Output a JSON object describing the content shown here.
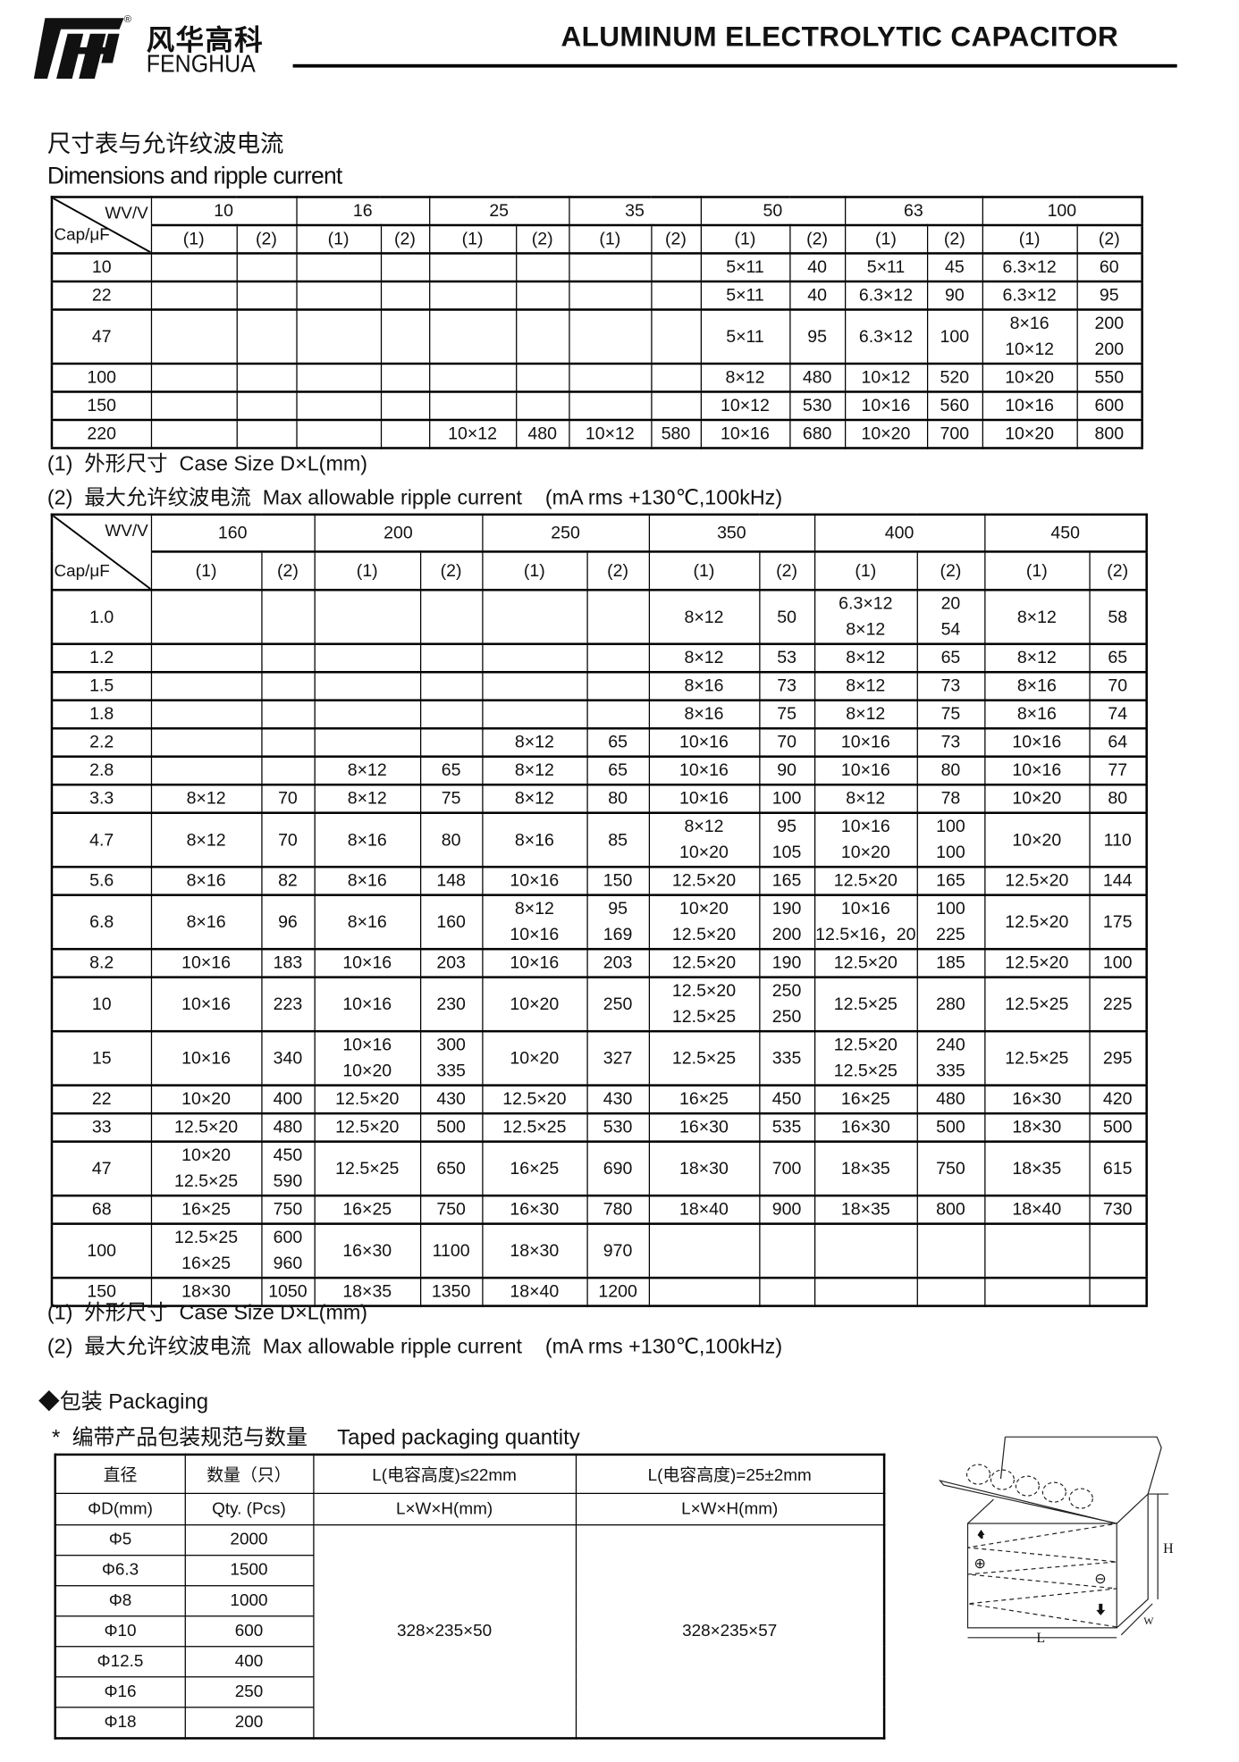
{
  "header": {
    "logo_cn": "风华高科",
    "logo_en": "FENGHUA",
    "logo_mark": "FH",
    "registered": "®",
    "title": "ALUMINUM ELECTROLYTIC CAPACITOR"
  },
  "section1": {
    "title_cn": "尺寸表与允许纹波电流",
    "title_en": "Dimensions and ripple current"
  },
  "table1": {
    "corner_top": "WV/V",
    "corner_bottom": "Cap/μF",
    "voltages": [
      "10",
      "16",
      "25",
      "35",
      "50",
      "63",
      "100"
    ],
    "subheaders": [
      "(1)",
      "(2)"
    ],
    "rows": [
      {
        "cap": "10",
        "cells": [
          "",
          "",
          "",
          "",
          "",
          "",
          "",
          "",
          "5×11",
          "40",
          "5×11",
          "45",
          "6.3×12",
          "60"
        ]
      },
      {
        "cap": "22",
        "cells": [
          "",
          "",
          "",
          "",
          "",
          "",
          "",
          "",
          "5×11",
          "40",
          "6.3×12",
          "90",
          "6.3×12",
          "95"
        ]
      },
      {
        "cap": "47",
        "cells": [
          "",
          "",
          "",
          "",
          "",
          "",
          "",
          "",
          "5×11",
          "95",
          "6.3×12",
          "100",
          "8×16\n10×12",
          "200\n200"
        ]
      },
      {
        "cap": "100",
        "cells": [
          "",
          "",
          "",
          "",
          "",
          "",
          "",
          "",
          "8×12",
          "480",
          "10×12",
          "520",
          "10×20",
          "550"
        ]
      },
      {
        "cap": "150",
        "cells": [
          "",
          "",
          "",
          "",
          "",
          "",
          "",
          "",
          "10×12",
          "530",
          "10×16",
          "560",
          "10×16",
          "600"
        ]
      },
      {
        "cap": "220",
        "cells": [
          "",
          "",
          "",
          "",
          "10×12",
          "480",
          "10×12",
          "580",
          "10×16",
          "680",
          "10×20",
          "700",
          "10×20",
          "800"
        ]
      }
    ]
  },
  "notes1": {
    "line1": "(1)  外形尺寸  Case Size D×L(mm)",
    "line2": "(2)  最大允许纹波电流  Max allowable ripple current    (mA rms +130℃,100kHz)"
  },
  "table2": {
    "corner_top": "WV/V",
    "corner_bottom": "Cap/μF",
    "voltages": [
      "160",
      "200",
      "250",
      "350",
      "400",
      "450"
    ],
    "subheaders": [
      "(1)",
      "(2)"
    ],
    "rows": [
      {
        "cap": "1.0",
        "cells": [
          "",
          "",
          "",
          "",
          "",
          "",
          "8×12",
          "50",
          "6.3×12\n8×12",
          "20\n54",
          "8×12",
          "58"
        ]
      },
      {
        "cap": "1.2",
        "cells": [
          "",
          "",
          "",
          "",
          "",
          "",
          "8×12",
          "53",
          "8×12",
          "65",
          "8×12",
          "65"
        ]
      },
      {
        "cap": "1.5",
        "cells": [
          "",
          "",
          "",
          "",
          "",
          "",
          "8×16",
          "73",
          "8×12",
          "73",
          "8×16",
          "70"
        ]
      },
      {
        "cap": "1.8",
        "cells": [
          "",
          "",
          "",
          "",
          "",
          "",
          "8×16",
          "75",
          "8×12",
          "75",
          "8×16",
          "74"
        ]
      },
      {
        "cap": "2.2",
        "cells": [
          "",
          "",
          "",
          "",
          "8×12",
          "65",
          "10×16",
          "70",
          "10×16",
          "73",
          "10×16",
          "64"
        ]
      },
      {
        "cap": "2.8",
        "cells": [
          "",
          "",
          "8×12",
          "65",
          "8×12",
          "65",
          "10×16",
          "90",
          "10×16",
          "80",
          "10×16",
          "77"
        ]
      },
      {
        "cap": "3.3",
        "cells": [
          "8×12",
          "70",
          "8×12",
          "75",
          "8×12",
          "80",
          "10×16",
          "100",
          "8×12",
          "78",
          "10×20",
          "80"
        ]
      },
      {
        "cap": "4.7",
        "cells": [
          "8×12",
          "70",
          "8×16",
          "80",
          "8×16",
          "85",
          "8×12\n10×20",
          "95\n105",
          "10×16\n10×20",
          "100\n100",
          "10×20",
          "110"
        ]
      },
      {
        "cap": "5.6",
        "cells": [
          "8×16",
          "82",
          "8×16",
          "148",
          "10×16",
          "150",
          "12.5×20",
          "165",
          "12.5×20",
          "165",
          "12.5×20",
          "144"
        ]
      },
      {
        "cap": "6.8",
        "cells": [
          "8×16",
          "96",
          "8×16",
          "160",
          "8×12\n10×16",
          "95\n169",
          "10×20\n12.5×20",
          "190\n200",
          "10×16\n12.5×16，20",
          "100\n225",
          "12.5×20",
          "175"
        ]
      },
      {
        "cap": "8.2",
        "cells": [
          "10×16",
          "183",
          "10×16",
          "203",
          "10×16",
          "203",
          "12.5×20",
          "190",
          "12.5×20",
          "185",
          "12.5×20",
          "100"
        ]
      },
      {
        "cap": "10",
        "cells": [
          "10×16",
          "223",
          "10×16",
          "230",
          "10×20",
          "250",
          "12.5×20\n12.5×25",
          "250\n250",
          "12.5×25",
          "280",
          "12.5×25",
          "225"
        ]
      },
      {
        "cap": "15",
        "cells": [
          "10×16",
          "340",
          "10×16\n10×20",
          "300\n335",
          "10×20",
          "327",
          "12.5×25",
          "335",
          "12.5×20\n12.5×25",
          "240\n335",
          "12.5×25",
          "295"
        ]
      },
      {
        "cap": "22",
        "cells": [
          "10×20",
          "400",
          "12.5×20",
          "430",
          "12.5×20",
          "430",
          "16×25",
          "450",
          "16×25",
          "480",
          "16×30",
          "420"
        ]
      },
      {
        "cap": "33",
        "cells": [
          "12.5×20",
          "480",
          "12.5×20",
          "500",
          "12.5×25",
          "530",
          "16×30",
          "535",
          "16×30",
          "500",
          "18×30",
          "500"
        ]
      },
      {
        "cap": "47",
        "cells": [
          "10×20\n12.5×25",
          "450\n590",
          "12.5×25",
          "650",
          "16×25",
          "690",
          "18×30",
          "700",
          "18×35",
          "750",
          "18×35",
          "615"
        ]
      },
      {
        "cap": "68",
        "cells": [
          "16×25",
          "750",
          "16×25",
          "750",
          "16×30",
          "780",
          "18×40",
          "900",
          "18×35",
          "800",
          "18×40",
          "730"
        ]
      },
      {
        "cap": "100",
        "cells": [
          "12.5×25\n16×25",
          "600\n960",
          "16×30",
          "1100",
          "18×30",
          "970",
          "",
          "",
          "",
          "",
          "",
          ""
        ]
      },
      {
        "cap": "150",
        "cells": [
          "18×30",
          "1050",
          "18×35",
          "1350",
          "18×40",
          "1200",
          "",
          "",
          "",
          "",
          "",
          ""
        ]
      }
    ]
  },
  "notes2": {
    "line1": "(1)  外形尺寸  Case Size D×L(mm)",
    "line2": "(2)  最大允许纹波电流  Max allowable ripple current    (mA rms +130℃,100kHz)"
  },
  "packaging": {
    "title": "◆包装 Packaging",
    "subtitle": "*  编带产品包装规范与数量     Taped packaging quantity",
    "table": {
      "h1": [
        "直径",
        "数量（只）",
        "L(电容高度)≤22mm",
        "L(电容高度)=25±2mm"
      ],
      "h2": [
        "ΦD(mm)",
        "Qty. (Pcs)",
        "L×W×H(mm)",
        "L×W×H(mm)"
      ],
      "rows": [
        {
          "d": "Φ5",
          "qty": "2000"
        },
        {
          "d": "Φ6.3",
          "qty": "1500"
        },
        {
          "d": "Φ8",
          "qty": "1000"
        },
        {
          "d": "Φ10",
          "qty": "600"
        },
        {
          "d": "Φ12.5",
          "qty": "400"
        },
        {
          "d": "Φ16",
          "qty": "250"
        },
        {
          "d": "Φ18",
          "qty": "200"
        }
      ],
      "box_22": "328×235×50",
      "box_25": "328×235×57"
    },
    "diagram": {
      "h": "H",
      "w": "W",
      "l": "L",
      "plus": "⊕",
      "minus": "⊖"
    }
  }
}
